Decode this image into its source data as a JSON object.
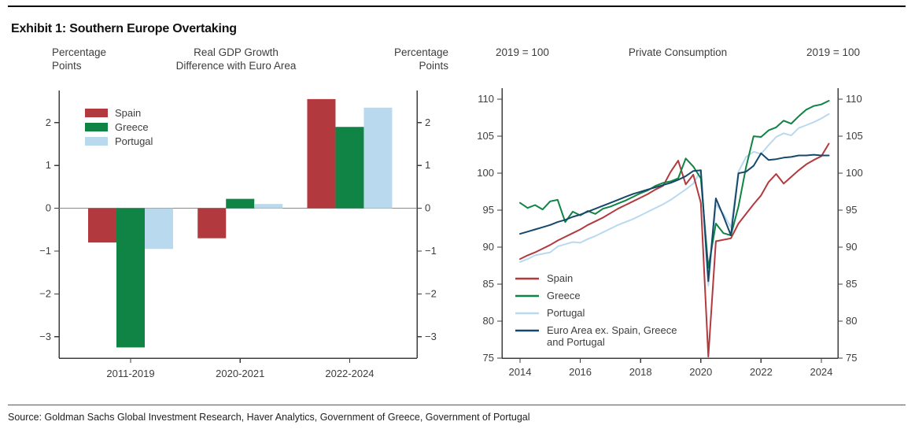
{
  "page": {
    "title": "Exhibit 1: Southern Europe Overtaking",
    "source": "Source: Goldman Sachs Global Investment Research, Haver Analytics, Government of Greece, Government of Portugal"
  },
  "colors": {
    "spain": "#b23a3e",
    "greece": "#0f8444",
    "portugal": "#b9d9ee",
    "euro_area": "#16486b",
    "axis": "#3c3c3c",
    "zero_line": "#8a8a8a",
    "text": "#3d3d3d"
  },
  "chart_data": [
    {
      "type": "bar",
      "title_lines": [
        "Real GDP Growth",
        "Difference with Euro Area"
      ],
      "left_axis_label_lines": [
        "Percentage",
        "Points"
      ],
      "right_axis_label_lines": [
        "Percentage",
        "Points"
      ],
      "categories": [
        "2011-2019",
        "2020-2021",
        "2022-2024"
      ],
      "series": [
        {
          "name": "Spain",
          "color_key": "spain",
          "values": [
            -0.8,
            -0.7,
            2.55
          ]
        },
        {
          "name": "Greece",
          "color_key": "greece",
          "values": [
            -3.25,
            0.22,
            1.9
          ]
        },
        {
          "name": "Portugal",
          "color_key": "portugal",
          "values": [
            -0.95,
            0.1,
            2.35
          ]
        }
      ],
      "ylim": [
        -3.5,
        2.75
      ],
      "yticks": [
        -3,
        -2,
        -1,
        0,
        1,
        2
      ],
      "grid": false,
      "legend_position": "top-left"
    },
    {
      "type": "line",
      "title": "Private Consumption",
      "left_axis_label": "2019 = 100",
      "right_axis_label": "2019 = 100",
      "x_start": 2014.0,
      "x_step": 0.25,
      "xlim": [
        2013.4,
        2024.55
      ],
      "ylim": [
        75,
        111.5
      ],
      "xticks": [
        2014,
        2016,
        2018,
        2020,
        2022,
        2024
      ],
      "yticks": [
        75,
        80,
        85,
        90,
        95,
        100,
        105,
        110
      ],
      "grid": false,
      "legend_position": "bottom-left",
      "series": [
        {
          "name": "Spain",
          "color_key": "spain",
          "legend_lines": [
            "Spain"
          ],
          "values": [
            88.4,
            88.9,
            89.3,
            89.8,
            90.3,
            90.9,
            91.4,
            91.9,
            92.4,
            93.0,
            93.5,
            94.0,
            94.6,
            95.2,
            95.7,
            96.2,
            96.7,
            97.2,
            97.8,
            98.3,
            100.2,
            101.7,
            98.5,
            99.8,
            96.0,
            75.2,
            90.8,
            91.0,
            91.2,
            93.2,
            94.5,
            95.8,
            97.0,
            98.8,
            99.9,
            98.6,
            99.5,
            100.4,
            101.2,
            101.8,
            102.3,
            104.0
          ]
        },
        {
          "name": "Greece",
          "color_key": "greece",
          "legend_lines": [
            "Greece"
          ],
          "values": [
            96.0,
            95.3,
            95.7,
            95.1,
            96.2,
            96.4,
            93.4,
            94.8,
            94.3,
            94.9,
            94.5,
            95.2,
            95.5,
            95.9,
            96.3,
            96.8,
            97.3,
            97.7,
            98.3,
            98.7,
            98.9,
            99.3,
            102.0,
            100.9,
            99.3,
            87.2,
            93.2,
            91.9,
            91.6,
            95.5,
            100.8,
            105.0,
            104.9,
            105.8,
            106.2,
            107.1,
            106.7,
            107.7,
            108.6,
            109.1,
            109.3,
            109.8
          ]
        },
        {
          "name": "Portugal",
          "color_key": "portugal",
          "legend_lines": [
            "Portugal"
          ],
          "values": [
            88.0,
            88.4,
            88.9,
            89.1,
            89.3,
            90.1,
            90.4,
            90.7,
            90.6,
            91.1,
            91.5,
            92.0,
            92.5,
            93.0,
            93.4,
            93.8,
            94.3,
            94.8,
            95.3,
            95.8,
            96.4,
            97.1,
            97.8,
            98.6,
            100.3,
            84.8,
            95.8,
            94.5,
            92.7,
            100.2,
            102.2,
            102.9,
            102.6,
            103.8,
            104.9,
            105.4,
            105.1,
            106.1,
            106.5,
            106.9,
            107.4,
            108.0
          ]
        },
        {
          "name": "Euro Area ex. Spain, Greece and Portugal",
          "color_key": "euro_area",
          "legend_lines": [
            "Euro Area ex. Spain, Greece",
            "and Portugal"
          ],
          "values": [
            91.8,
            92.1,
            92.4,
            92.7,
            93.0,
            93.4,
            93.7,
            94.1,
            94.4,
            94.8,
            95.2,
            95.6,
            96.0,
            96.4,
            96.8,
            97.2,
            97.5,
            97.8,
            98.1,
            98.4,
            98.7,
            99.1,
            99.6,
            100.3,
            100.4,
            85.4,
            96.6,
            94.2,
            91.6,
            100.0,
            100.2,
            101.0,
            102.7,
            101.8,
            101.9,
            102.1,
            102.2,
            102.4,
            102.4,
            102.5,
            102.4,
            102.4
          ]
        }
      ]
    }
  ]
}
